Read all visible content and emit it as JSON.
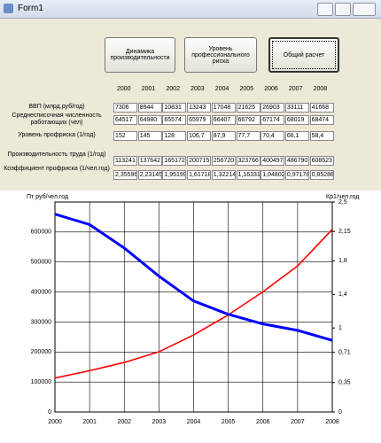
{
  "window": {
    "title": "Form1"
  },
  "buttons": [
    "Динамика производительности",
    "Уровень профессионального риска",
    "Общий расчет"
  ],
  "table": {
    "years": [
      "2000",
      "2001",
      "2002",
      "2003",
      "2004",
      "2005",
      "2006",
      "2007",
      "2008"
    ],
    "rows": [
      {
        "label": "ВВП (млрд.руб/год)",
        "cells": [
          "7306",
          "8944",
          "10831",
          "13243",
          "17048",
          "21625",
          "26903",
          "33111",
          "41668"
        ]
      },
      {
        "label": "Среднесписочная численность работающих (чел)",
        "cells": [
          "64517",
          "64980",
          "65574",
          "65979",
          "66407",
          "66792",
          "67174",
          "68019",
          "68474"
        ]
      },
      {
        "label": "Уровень профриска (1/год)",
        "cells": [
          "152",
          "145",
          "128",
          "106,7",
          "87,9",
          "77,7",
          "70,4",
          "66,1",
          "58,4"
        ]
      },
      {
        "label": "Производительность труда (1/год)",
        "cells": [
          "113241",
          "137642",
          "165172",
          "200715",
          "256720",
          "323766",
          "400497",
          "486790",
          "608523"
        ]
      },
      {
        "label": "Коэффициент профриска (1/чел.год)",
        "cells": [
          "2,35596",
          "2,23145",
          "1,95199",
          "1,61718",
          "1,32214",
          "1,16331",
          "1,04802",
          "0,97178",
          "0,85288"
        ]
      }
    ]
  },
  "chart_data": {
    "type": "line",
    "y_label": "Пт руб/чел.год",
    "y2_label": "Кр1/чел.год",
    "x": [
      2000,
      2001,
      2002,
      2003,
      2004,
      2005,
      2006,
      2007,
      2008
    ],
    "xlim": [
      2000,
      2008
    ],
    "xticks": [
      2000,
      2001,
      2002,
      2003,
      2004,
      2005,
      2006,
      2007,
      2008
    ],
    "ylim": [
      0,
      700000
    ],
    "yticks": [
      0,
      100000,
      200000,
      300000,
      400000,
      500000,
      600000
    ],
    "y2lim": [
      0,
      2.5
    ],
    "y2ticks": [
      0,
      {
        "value": 0.35,
        "label": "0,35"
      },
      {
        "value": 0.71,
        "label": "0,71"
      },
      1,
      {
        "value": 1.4,
        "label": "1,4"
      },
      {
        "value": 1.8,
        "label": "1,8"
      },
      {
        "value": 2.15,
        "label": "2,15"
      },
      {
        "value": 2.5,
        "label": "2,5"
      }
    ],
    "grid": true,
    "series": [
      {
        "color": "#ff0000",
        "values": [
          113241,
          137642,
          165172,
          200715,
          256720,
          323766,
          400497,
          486790,
          608523
        ]
      },
      {
        "color": "#0000ff",
        "axis": "y2",
        "values": [
          2.35596,
          2.23145,
          1.95199,
          1.61718,
          1.32214,
          1.16331,
          1.04802,
          0.97178,
          0.85288
        ]
      }
    ]
  }
}
